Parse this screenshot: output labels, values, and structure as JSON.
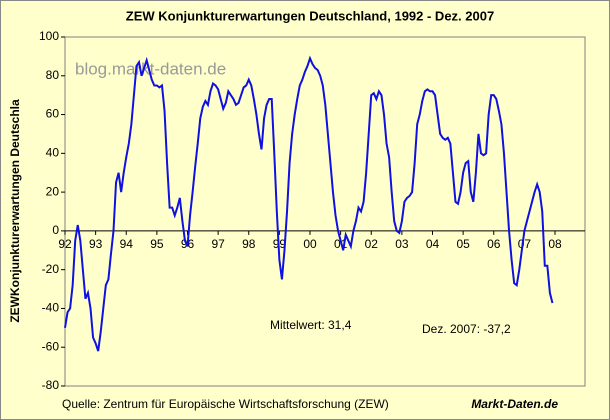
{
  "chart_data": {
    "type": "line",
    "title": "ZEW Konjunkturerwartungen Deutschland, 1992 - Dez. 2007",
    "y_label": "ZEWKonjunkturerwartungen Deutschla",
    "watermark": "blog.markt-daten.de",
    "annotations": [
      "Mittelwert: 31,4",
      "Dez. 2007: -37,2"
    ],
    "source": "Quelle:  Zentrum für Europäische Wirtschaftsforschung (ZEW)",
    "brand": "Markt-Daten.de",
    "categories": [
      "92",
      null,
      null,
      null,
      null,
      null,
      null,
      null,
      null,
      null,
      null,
      null,
      "93",
      null,
      null,
      null,
      null,
      null,
      null,
      null,
      null,
      null,
      null,
      null,
      "94",
      null,
      null,
      null,
      null,
      null,
      null,
      null,
      null,
      null,
      null,
      null,
      "95",
      null,
      null,
      null,
      null,
      null,
      null,
      null,
      null,
      null,
      null,
      null,
      "96",
      null,
      null,
      null,
      null,
      null,
      null,
      null,
      null,
      null,
      null,
      null,
      "97",
      null,
      null,
      null,
      null,
      null,
      null,
      null,
      null,
      null,
      null,
      null,
      "98",
      null,
      null,
      null,
      null,
      null,
      null,
      null,
      null,
      null,
      null,
      null,
      "99",
      null,
      null,
      null,
      null,
      null,
      null,
      null,
      null,
      null,
      null,
      null,
      "00",
      null,
      null,
      null,
      null,
      null,
      null,
      null,
      null,
      null,
      null,
      null,
      "01",
      null,
      null,
      null,
      null,
      null,
      null,
      null,
      null,
      null,
      null,
      null,
      "02",
      null,
      null,
      null,
      null,
      null,
      null,
      null,
      null,
      null,
      null,
      null,
      "03",
      null,
      null,
      null,
      null,
      null,
      null,
      null,
      null,
      null,
      null,
      null,
      "04",
      null,
      null,
      null,
      null,
      null,
      null,
      null,
      null,
      null,
      null,
      null,
      "05",
      null,
      null,
      null,
      null,
      null,
      null,
      null,
      null,
      null,
      null,
      null,
      "06",
      null,
      null,
      null,
      null,
      null,
      null,
      null,
      null,
      null,
      null,
      null,
      "07",
      null,
      null,
      null,
      null,
      null,
      null,
      null,
      null,
      null,
      null,
      null,
      "08"
    ],
    "values": [
      -50,
      -42,
      -40,
      -28,
      -5,
      3,
      -5,
      -20,
      -35,
      -32,
      -40,
      -55,
      -58,
      -62,
      -52,
      -40,
      -28,
      -25,
      -12,
      0,
      25,
      30,
      20,
      30,
      38,
      45,
      55,
      70,
      85,
      87,
      80,
      84,
      88,
      83,
      78,
      75,
      75,
      74,
      75,
      62,
      35,
      12,
      12,
      8,
      12,
      17,
      5,
      -5,
      -8,
      8,
      20,
      33,
      45,
      58,
      64,
      67,
      65,
      72,
      76,
      75,
      73,
      68,
      63,
      66,
      72,
      70,
      68,
      65,
      66,
      70,
      74,
      75,
      78,
      75,
      68,
      60,
      50,
      42,
      58,
      65,
      68,
      68,
      40,
      10,
      -15,
      -25,
      -10,
      10,
      35,
      50,
      60,
      68,
      75,
      78,
      82,
      85,
      89,
      86,
      84,
      83,
      80,
      75,
      65,
      50,
      35,
      20,
      8,
      0,
      -5,
      -10,
      -2,
      -5,
      -8,
      0,
      5,
      12,
      10,
      15,
      30,
      50,
      70,
      71,
      68,
      72,
      70,
      60,
      45,
      38,
      20,
      5,
      0,
      -1,
      5,
      15,
      17,
      18,
      20,
      35,
      55,
      60,
      67,
      72,
      73,
      72,
      72,
      70,
      60,
      50,
      48,
      47,
      48,
      45,
      30,
      15,
      14,
      20,
      30,
      35,
      36,
      20,
      15,
      30,
      50,
      40,
      39,
      40,
      60,
      70,
      70,
      68,
      62,
      55,
      40,
      20,
      0,
      -15,
      -27,
      -28,
      -20,
      -10,
      0,
      5,
      10,
      15,
      20,
      24,
      20,
      10,
      -18,
      -18,
      -32,
      -37.2,
      null
    ],
    "color": "#1010e0",
    "ylim": [
      -80,
      100
    ],
    "yticks": [
      -80,
      -60,
      -40,
      -20,
      0,
      20,
      40,
      60,
      80,
      100
    ]
  }
}
